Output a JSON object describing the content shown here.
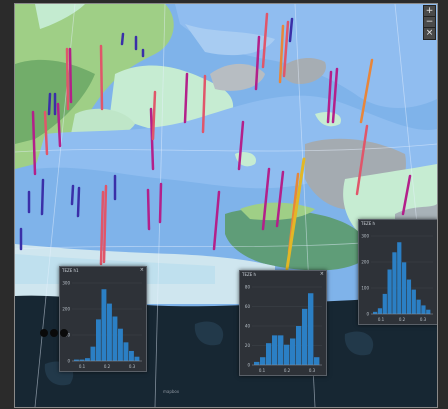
{
  "map": {
    "zoom_in_icon": "+",
    "zoom_out_icon": "−",
    "close_icon": "×",
    "attribution": "mapbox"
  },
  "panels": [
    {
      "title": "TEZE h1",
      "close": "×",
      "bar_color": "#2b7fc4",
      "chart_data": {
        "type": "bar",
        "y_ticks": [
          "300",
          "200",
          "100",
          "0"
        ],
        "x_ticks": [
          "0.1",
          "0.2",
          "0.3"
        ],
        "values": [
          2,
          2,
          4,
          20,
          58,
          100,
          80,
          62,
          45,
          26,
          14,
          6
        ]
      }
    },
    {
      "title": "TEZE h",
      "close": "×",
      "bar_color": "#2b7fc4",
      "chart_data": {
        "type": "bar",
        "y_ticks": [
          "80",
          "60",
          "40",
          "20",
          "0"
        ],
        "x_ticks": [
          "0.1",
          "0.2",
          "0.3"
        ],
        "values": [
          4,
          10,
          28,
          38,
          38,
          26,
          34,
          50,
          72,
          92,
          10
        ]
      }
    },
    {
      "title": "TEZE h",
      "close": "",
      "bar_color": "#2b7fc4",
      "chart_data": {
        "type": "bar",
        "y_ticks": [
          "300",
          "200",
          "100",
          "0"
        ],
        "x_ticks": [
          "0.1",
          "0.2",
          "0.3"
        ],
        "values": [
          3,
          8,
          28,
          62,
          86,
          100,
          72,
          48,
          34,
          20,
          12,
          6
        ]
      }
    }
  ]
}
